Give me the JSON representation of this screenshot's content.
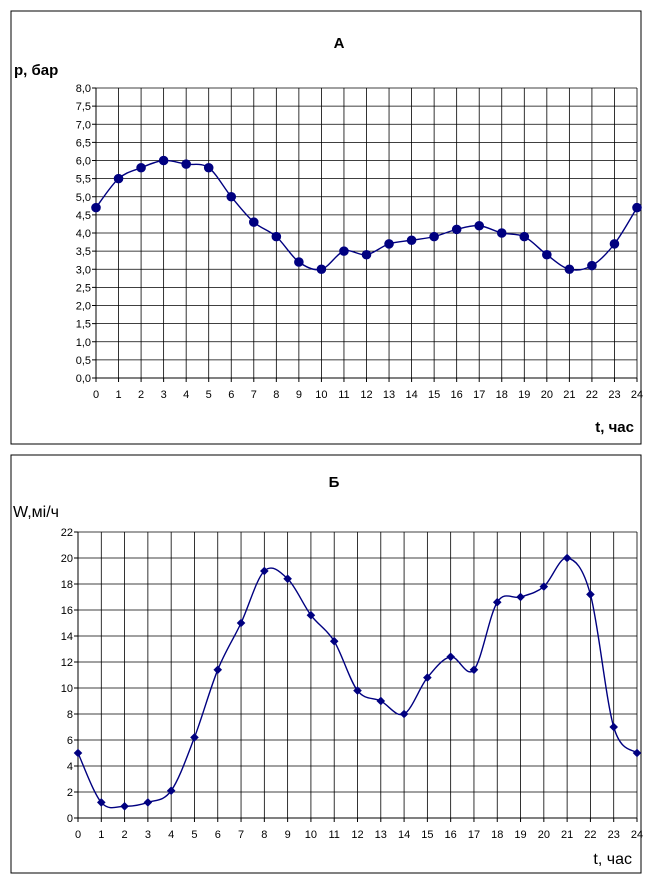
{
  "chart_data": [
    {
      "type": "line",
      "title": "А",
      "ylabel": "p, бар",
      "xlabel": "t, час",
      "ylim": [
        0,
        8
      ],
      "y_ticks": [
        "0,0",
        "0,5",
        "1,0",
        "1,5",
        "2,0",
        "2,5",
        "3,0",
        "3,5",
        "4,0",
        "4,5",
        "5,0",
        "5,5",
        "6,0",
        "6,5",
        "7,0",
        "7,5",
        "8,0"
      ],
      "x_ticks": [
        "0",
        "1",
        "2",
        "3",
        "4",
        "5",
        "6",
        "7",
        "8",
        "9",
        "10",
        "11",
        "12",
        "13",
        "14",
        "15",
        "16",
        "17",
        "18",
        "19",
        "20",
        "21",
        "22",
        "23",
        "24"
      ],
      "grid": true,
      "marker": "circle",
      "color": "#000080",
      "series": [
        {
          "x": [
            0,
            1,
            2,
            3,
            4,
            5,
            6,
            7,
            8,
            9,
            10,
            11,
            12,
            13,
            14,
            15,
            16,
            17,
            18,
            19,
            20,
            21,
            22,
            23,
            24
          ],
          "values": [
            4.7,
            5.5,
            5.8,
            6.0,
            5.9,
            5.8,
            5.0,
            4.3,
            3.9,
            3.2,
            3.0,
            3.5,
            3.4,
            3.7,
            3.8,
            3.9,
            4.1,
            4.2,
            4.0,
            3.9,
            3.4,
            3.0,
            3.1,
            3.7,
            4.7
          ]
        }
      ]
    },
    {
      "type": "line",
      "title": "Б",
      "ylabel": "W,мі/ч",
      "xlabel": "t, час",
      "ylim": [
        0,
        22
      ],
      "y_ticks": [
        "0",
        "2",
        "4",
        "6",
        "8",
        "10",
        "12",
        "14",
        "16",
        "18",
        "20",
        "22"
      ],
      "x_ticks": [
        "0",
        "1",
        "2",
        "3",
        "4",
        "5",
        "6",
        "7",
        "8",
        "9",
        "10",
        "11",
        "12",
        "13",
        "14",
        "15",
        "16",
        "17",
        "18",
        "19",
        "20",
        "21",
        "22",
        "23",
        "24"
      ],
      "grid": true,
      "marker": "diamond",
      "color": "#000080",
      "series": [
        {
          "x": [
            0,
            1,
            2,
            3,
            4,
            5,
            6,
            7,
            8,
            9,
            10,
            11,
            12,
            13,
            14,
            15,
            16,
            17,
            18,
            19,
            20,
            21,
            22,
            23,
            24
          ],
          "values": [
            5.0,
            1.2,
            0.9,
            1.2,
            2.1,
            6.2,
            11.4,
            15.0,
            19.0,
            18.4,
            15.6,
            13.6,
            9.8,
            9.0,
            8.0,
            10.8,
            12.4,
            11.4,
            16.6,
            17.0,
            17.8,
            20.0,
            17.2,
            7.0,
            5.0
          ]
        }
      ]
    }
  ]
}
